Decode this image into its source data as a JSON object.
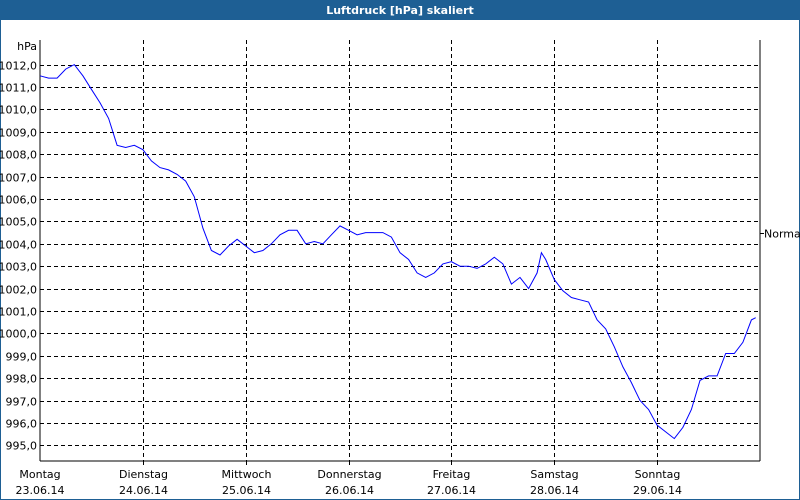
{
  "window": {
    "title": "Luftdruck [hPa] skaliert",
    "title_bar_color": "#1E5F94"
  },
  "chart_data": {
    "type": "line",
    "title": "Luftdruck [hPa] skaliert",
    "ylabel": "hPa",
    "ylim": [
      994.3,
      1013.1
    ],
    "xlim": [
      "2014-06-23T00:00",
      "2014-06-30T00:00"
    ],
    "grid": true,
    "y_ticks": [
      "995,0",
      "996,0",
      "997,0",
      "998,0",
      "999,0",
      "1000,0",
      "1001,0",
      "1002,0",
      "1003,0",
      "1004,0",
      "1005,0",
      "1006,0",
      "1007,0",
      "1008,0",
      "1009,0",
      "1010,0",
      "1011,0",
      "1012,0"
    ],
    "y_tick_values": [
      995,
      996,
      997,
      998,
      999,
      1000,
      1001,
      1002,
      1003,
      1004,
      1005,
      1006,
      1007,
      1008,
      1009,
      1010,
      1011,
      1012
    ],
    "x_ticks": [
      {
        "day": "Montag",
        "date": "23.06.14"
      },
      {
        "day": "Dienstag",
        "date": "24.06.14"
      },
      {
        "day": "Mittwoch",
        "date": "25.06.14"
      },
      {
        "day": "Donnerstag",
        "date": "26.06.14"
      },
      {
        "day": "Freitag",
        "date": "27.06.14"
      },
      {
        "day": "Samstag",
        "date": "28.06.14"
      },
      {
        "day": "Sonntag",
        "date": "29.06.14"
      }
    ],
    "reference_line": {
      "label": "Normal",
      "value": 1004.5
    },
    "line_color": "#0000FF",
    "series": [
      {
        "points": [
          [
            "2014-06-23T00:00",
            1011.5
          ],
          [
            "2014-06-23T02:00",
            1011.4
          ],
          [
            "2014-06-23T04:00",
            1011.4
          ],
          [
            "2014-06-23T06:00",
            1011.8
          ],
          [
            "2014-06-23T08:00",
            1012.0
          ],
          [
            "2014-06-23T10:00",
            1011.5
          ],
          [
            "2014-06-23T12:00",
            1010.9
          ],
          [
            "2014-06-23T14:00",
            1010.3
          ],
          [
            "2014-06-23T16:00",
            1009.6
          ],
          [
            "2014-06-23T18:00",
            1008.4
          ],
          [
            "2014-06-23T20:00",
            1008.3
          ],
          [
            "2014-06-23T22:00",
            1008.4
          ],
          [
            "2014-06-24T00:00",
            1008.2
          ],
          [
            "2014-06-24T02:00",
            1007.7
          ],
          [
            "2014-06-24T04:00",
            1007.4
          ],
          [
            "2014-06-24T06:00",
            1007.3
          ],
          [
            "2014-06-24T08:00",
            1007.1
          ],
          [
            "2014-06-24T10:00",
            1006.8
          ],
          [
            "2014-06-24T12:00",
            1006.1
          ],
          [
            "2014-06-24T14:00",
            1004.7
          ],
          [
            "2014-06-24T16:00",
            1003.7
          ],
          [
            "2014-06-24T18:00",
            1003.5
          ],
          [
            "2014-06-24T20:00",
            1003.9
          ],
          [
            "2014-06-24T22:00",
            1004.2
          ],
          [
            "2014-06-25T00:00",
            1003.9
          ],
          [
            "2014-06-25T02:00",
            1003.6
          ],
          [
            "2014-06-25T04:00",
            1003.7
          ],
          [
            "2014-06-25T06:00",
            1004.0
          ],
          [
            "2014-06-25T08:00",
            1004.4
          ],
          [
            "2014-06-25T10:00",
            1004.6
          ],
          [
            "2014-06-25T12:00",
            1004.6
          ],
          [
            "2014-06-25T14:00",
            1004.0
          ],
          [
            "2014-06-25T16:00",
            1004.1
          ],
          [
            "2014-06-25T18:00",
            1004.0
          ],
          [
            "2014-06-25T20:00",
            1004.4
          ],
          [
            "2014-06-25T22:00",
            1004.8
          ],
          [
            "2014-06-26T00:00",
            1004.6
          ],
          [
            "2014-06-26T02:00",
            1004.4
          ],
          [
            "2014-06-26T04:00",
            1004.5
          ],
          [
            "2014-06-26T06:00",
            1004.5
          ],
          [
            "2014-06-26T08:00",
            1004.5
          ],
          [
            "2014-06-26T10:00",
            1004.3
          ],
          [
            "2014-06-26T12:00",
            1003.6
          ],
          [
            "2014-06-26T14:00",
            1003.3
          ],
          [
            "2014-06-26T16:00",
            1002.7
          ],
          [
            "2014-06-26T18:00",
            1002.5
          ],
          [
            "2014-06-26T20:00",
            1002.7
          ],
          [
            "2014-06-26T22:00",
            1003.1
          ],
          [
            "2014-06-27T00:00",
            1003.2
          ],
          [
            "2014-06-27T02:00",
            1003.0
          ],
          [
            "2014-06-27T04:00",
            1003.0
          ],
          [
            "2014-06-27T06:00",
            1002.9
          ],
          [
            "2014-06-27T08:00",
            1003.1
          ],
          [
            "2014-06-27T10:00",
            1003.4
          ],
          [
            "2014-06-27T12:00",
            1003.1
          ],
          [
            "2014-06-27T14:00",
            1002.2
          ],
          [
            "2014-06-27T16:00",
            1002.5
          ],
          [
            "2014-06-27T18:00",
            1002.0
          ],
          [
            "2014-06-27T20:00",
            1002.7
          ],
          [
            "2014-06-27T21:00",
            1003.6
          ],
          [
            "2014-06-27T22:00",
            1003.3
          ],
          [
            "2014-06-28T00:00",
            1002.4
          ],
          [
            "2014-06-28T02:00",
            1001.9
          ],
          [
            "2014-06-28T04:00",
            1001.6
          ],
          [
            "2014-06-28T06:00",
            1001.5
          ],
          [
            "2014-06-28T08:00",
            1001.4
          ],
          [
            "2014-06-28T10:00",
            1000.6
          ],
          [
            "2014-06-28T12:00",
            1000.2
          ],
          [
            "2014-06-28T14:00",
            999.4
          ],
          [
            "2014-06-28T16:00",
            998.5
          ],
          [
            "2014-06-28T18:00",
            997.8
          ],
          [
            "2014-06-28T20:00",
            997.0
          ],
          [
            "2014-06-28T22:00",
            996.6
          ],
          [
            "2014-06-29T00:00",
            995.9
          ],
          [
            "2014-06-29T02:00",
            995.6
          ],
          [
            "2014-06-29T04:00",
            995.3
          ],
          [
            "2014-06-29T06:00",
            995.8
          ],
          [
            "2014-06-29T08:00",
            996.6
          ],
          [
            "2014-06-29T10:00",
            997.9
          ],
          [
            "2014-06-29T12:00",
            998.1
          ],
          [
            "2014-06-29T14:00",
            998.1
          ],
          [
            "2014-06-29T16:00",
            999.1
          ],
          [
            "2014-06-29T18:00",
            999.1
          ],
          [
            "2014-06-29T20:00",
            999.6
          ],
          [
            "2014-06-29T22:00",
            1000.6
          ],
          [
            "2014-06-29T23:00",
            1000.7
          ]
        ]
      }
    ]
  }
}
